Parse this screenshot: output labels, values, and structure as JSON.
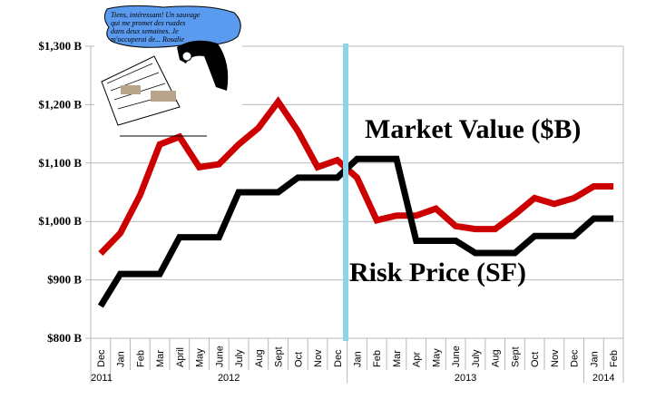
{
  "chart_data": {
    "type": "line",
    "title": "",
    "xlabel": "",
    "ylabel": "",
    "ylim": [
      800,
      1300
    ],
    "yticks": [
      800,
      900,
      1000,
      1100,
      1200,
      1300
    ],
    "ytick_labels": [
      "$800 B",
      "$900 B",
      "$1,000 B",
      "$1,100 B",
      "$1,200 B",
      "$1,300 B"
    ],
    "grid": true,
    "categories": [
      "Dec",
      "Jan",
      "Feb",
      "Mar",
      "April",
      "May",
      "June",
      "July",
      "Aug",
      "Sept",
      "Oct",
      "Nov",
      "Dec",
      "Jan",
      "Feb",
      "Mar",
      "Apr",
      "May",
      "June",
      "July",
      "Aug",
      "Sept",
      "Oct",
      "Nov",
      "Dec",
      "Jan",
      "Feb"
    ],
    "years": [
      {
        "label": "2011",
        "start": 0,
        "end": 0
      },
      {
        "label": "2012",
        "start": 1,
        "end": 12
      },
      {
        "label": "2013",
        "start": 13,
        "end": 24
      },
      {
        "label": "2014",
        "start": 25,
        "end": 26
      }
    ],
    "series": [
      {
        "name": "Market Value ($B)",
        "color": "#cc0000",
        "values": [
          945,
          980,
          1045,
          1132,
          1145,
          1093,
          1098,
          1132,
          1160,
          1205,
          1155,
          1093,
          1105,
          1075,
          1002,
          1010,
          1010,
          1022,
          992,
          987,
          987,
          1012,
          1040,
          1030,
          1040,
          1060,
          1060
        ]
      },
      {
        "name": "Risk Price (SF)",
        "color": "#000000",
        "values": [
          855,
          910,
          910,
          910,
          973,
          973,
          973,
          1050,
          1050,
          1050,
          1075,
          1075,
          1075,
          1107,
          1107,
          1107,
          967,
          967,
          967,
          946,
          946,
          946,
          975,
          975,
          975,
          1005,
          1005
        ]
      }
    ],
    "annotations": [
      {
        "text": "Market Value ($B)"
      },
      {
        "text": "Risk Price (SF)"
      }
    ],
    "divider": {
      "between": [
        "Dec 2012",
        "Jan 2013"
      ],
      "color": "#8fd3e8"
    }
  },
  "cartoon": {
    "speech": [
      "Tiens, intéressant! Un sauvage",
      "qui me promet des ruades",
      "dans deux semaines. Je",
      "m'occuperai de... Rosalie"
    ]
  }
}
